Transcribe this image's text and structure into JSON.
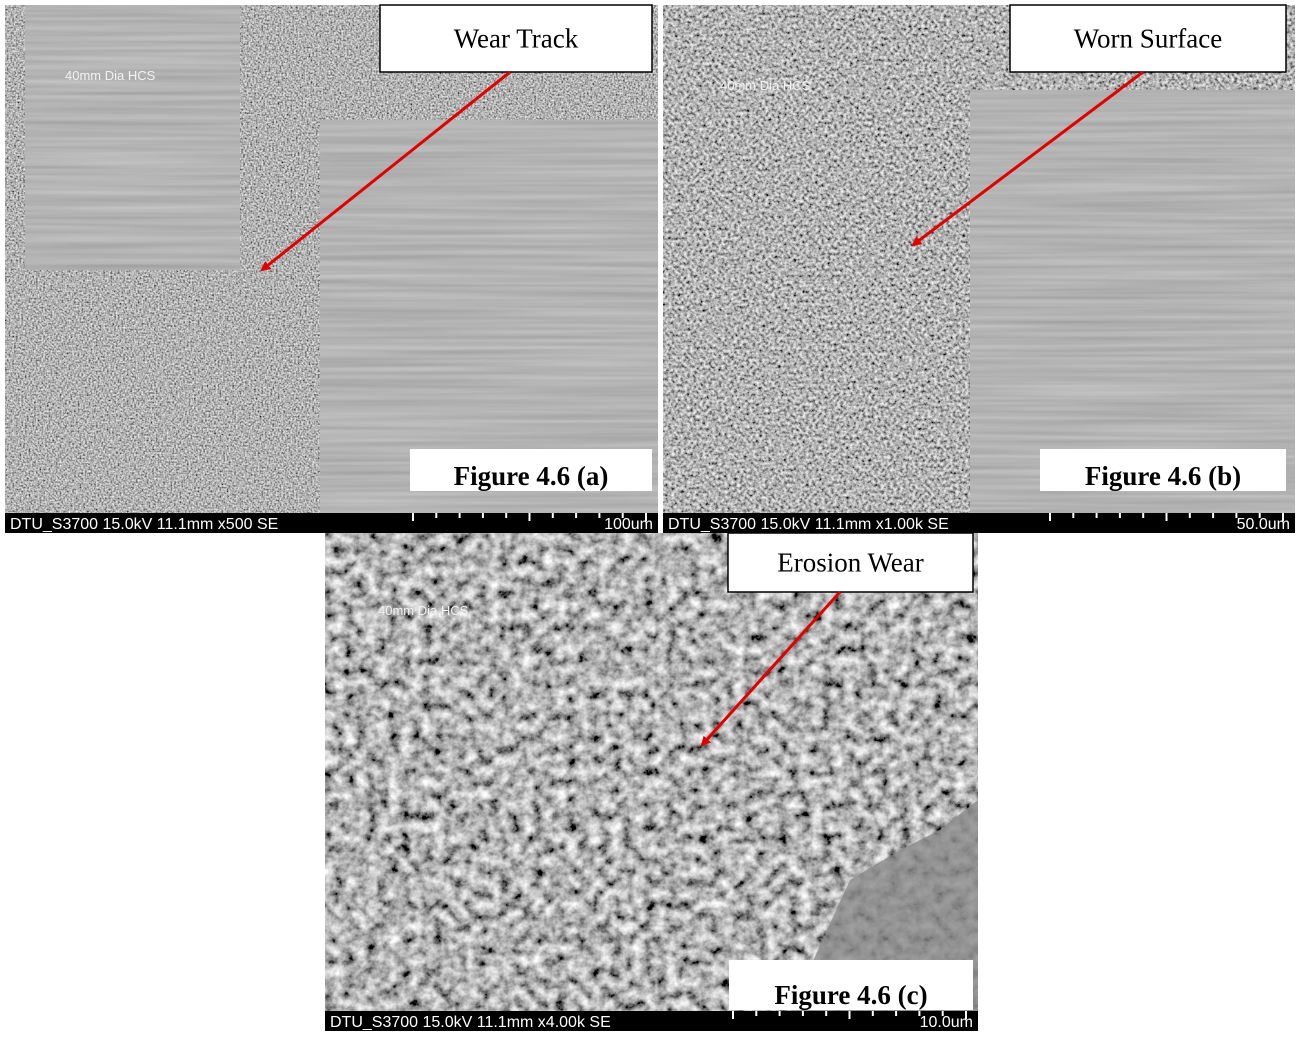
{
  "panels": [
    {
      "callout": "Wear Track",
      "figure_label": "Figure 4.6 (a)",
      "sample_label": "40mm Dia HCS",
      "info": "DTU_S3700 15.0kV 11.1mm x500 SE",
      "scale": "100um"
    },
    {
      "callout": "Worn Surface",
      "figure_label": "Figure 4.6 (b)",
      "sample_label": "40mm Dia HCS",
      "info": "DTU_S3700 15.0kV 11.1mm x1.00k SE",
      "scale": "50.0um"
    },
    {
      "callout": "Erosion Wear",
      "figure_label": "Figure 4.6 (c)",
      "sample_label": "40mm Dia HCS",
      "info": "DTU_S3700 15.0kV 11.1mm x4.00k SE",
      "scale": "10.0um"
    }
  ]
}
